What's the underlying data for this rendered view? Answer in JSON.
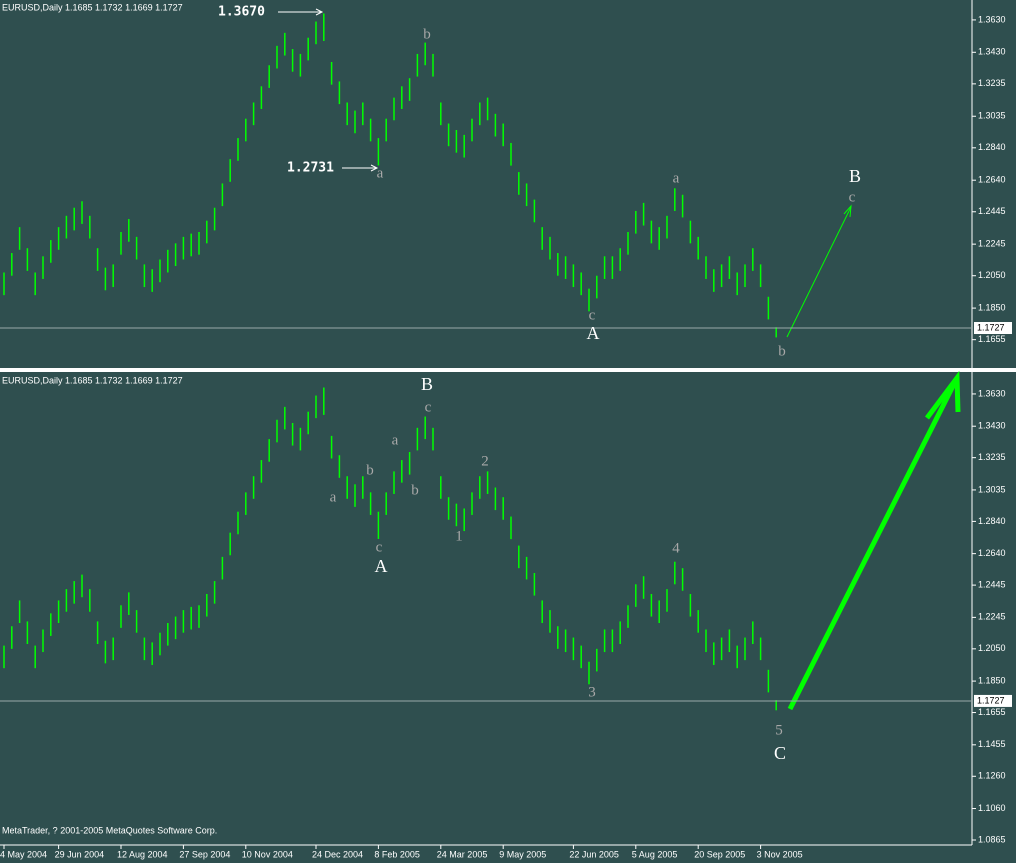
{
  "chart_data": {
    "type": "ohlc",
    "header": "EURUSD,Daily  1.1685 1.1732 1.1669 1.1727",
    "footer": "MetaTrader, ? 2001-2005 MetaQuotes Software Corp.",
    "color": "#00ff00",
    "current_price": 1.1727,
    "xticks": [
      {
        "value": 0,
        "label": "4 May 2004"
      },
      {
        "value": 7,
        "label": "29 Jun 2004"
      },
      {
        "value": 15,
        "label": "12 Aug 2004"
      },
      {
        "value": 23,
        "label": "27 Sep 2004"
      },
      {
        "value": 31,
        "label": "10 Nov 2004"
      },
      {
        "value": 40,
        "label": "24 Dec 2004"
      },
      {
        "value": 48,
        "label": "8 Feb 2005"
      },
      {
        "value": 56,
        "label": "24 Mar 2005"
      },
      {
        "value": 64,
        "label": "9 May 2005"
      },
      {
        "value": 73,
        "label": "22 Jun 2005"
      },
      {
        "value": 81,
        "label": "5 Aug 2005"
      },
      {
        "value": 89,
        "label": "20 Sep 2005"
      },
      {
        "value": 97,
        "label": "3 Nov 2005"
      }
    ],
    "high": [
      1.207,
      1.219,
      1.235,
      1.222,
      1.207,
      1.217,
      1.227,
      1.235,
      1.242,
      1.247,
      1.251,
      1.242,
      1.222,
      1.21,
      1.212,
      1.232,
      1.24,
      1.229,
      1.212,
      1.209,
      1.215,
      1.221,
      1.225,
      1.229,
      1.231,
      1.232,
      1.239,
      1.247,
      1.262,
      1.277,
      1.29,
      1.302,
      1.312,
      1.322,
      1.335,
      1.347,
      1.355,
      1.345,
      1.342,
      1.352,
      1.362,
      1.367,
      1.337,
      1.325,
      1.312,
      1.307,
      1.312,
      1.302,
      1.29,
      1.302,
      1.315,
      1.322,
      1.327,
      1.342,
      1.349,
      1.342,
      1.312,
      1.299,
      1.295,
      1.292,
      1.302,
      1.312,
      1.315,
      1.305,
      1.299,
      1.287,
      1.269,
      1.262,
      1.252,
      1.235,
      1.229,
      1.219,
      1.217,
      1.212,
      1.207,
      1.197,
      1.205,
      1.217,
      1.217,
      1.222,
      1.232,
      1.245,
      1.25,
      1.239,
      1.235,
      1.242,
      1.259,
      1.255,
      1.239,
      1.229,
      1.217,
      1.209,
      1.212,
      1.217,
      1.207,
      1.212,
      1.222,
      1.212,
      1.192,
      1.1732
    ],
    "low": [
      1.193,
      1.205,
      1.221,
      1.208,
      1.193,
      1.203,
      1.213,
      1.221,
      1.228,
      1.233,
      1.237,
      1.228,
      1.208,
      1.196,
      1.198,
      1.218,
      1.226,
      1.215,
      1.198,
      1.195,
      1.201,
      1.207,
      1.211,
      1.215,
      1.217,
      1.218,
      1.225,
      1.233,
      1.248,
      1.263,
      1.276,
      1.288,
      1.298,
      1.308,
      1.321,
      1.333,
      1.341,
      1.331,
      1.328,
      1.338,
      1.348,
      1.35,
      1.323,
      1.311,
      1.298,
      1.293,
      1.298,
      1.288,
      1.2731,
      1.288,
      1.301,
      1.308,
      1.313,
      1.328,
      1.335,
      1.328,
      1.298,
      1.285,
      1.281,
      1.278,
      1.288,
      1.298,
      1.301,
      1.291,
      1.285,
      1.273,
      1.255,
      1.248,
      1.238,
      1.221,
      1.215,
      1.205,
      1.203,
      1.198,
      1.193,
      1.183,
      1.191,
      1.203,
      1.203,
      1.208,
      1.218,
      1.231,
      1.236,
      1.225,
      1.221,
      1.228,
      1.245,
      1.241,
      1.225,
      1.215,
      1.203,
      1.195,
      1.198,
      1.203,
      1.193,
      1.198,
      1.208,
      1.198,
      1.178,
      1.1669
    ],
    "panes": [
      {
        "ylim": [
          1.148,
          1.3753
        ],
        "yticks": [
          {
            "value": 1.363,
            "label": "1.3630"
          },
          {
            "value": 1.343,
            "label": "1.3430"
          },
          1.3235,
          1.3035,
          {
            "value": 1.284,
            "label": "1.2840"
          },
          {
            "value": 1.264,
            "label": "1.2640"
          },
          1.2445,
          1.2245,
          {
            "value": 1.205,
            "label": "1.2050"
          },
          {
            "value": 1.185,
            "label": "1.1850"
          },
          1.1655
        ],
        "labels": [
          "1.3670",
          "b",
          "1.2731",
          "a",
          "a",
          "B",
          "c",
          "c",
          "A",
          "b"
        ]
      },
      {
        "ylim": [
          1.0834,
          1.3766
        ],
        "yticks": [
          {
            "value": 1.363,
            "label": "1.3630"
          },
          {
            "value": 1.343,
            "label": "1.3430"
          },
          1.3235,
          1.3035,
          {
            "value": 1.284,
            "label": "1.2840"
          },
          {
            "value": 1.264,
            "label": "1.2640"
          },
          1.2445,
          1.2245,
          {
            "value": 1.205,
            "label": "1.2050"
          },
          {
            "value": 1.185,
            "label": "1.1850"
          },
          1.1655,
          1.1455,
          {
            "value": 1.126,
            "label": "1.1260"
          },
          {
            "value": 1.106,
            "label": "1.1060"
          },
          1.0865
        ],
        "labels": [
          "B",
          "c",
          "a",
          "b",
          "a",
          "b",
          "c",
          "A",
          "2",
          "1",
          "4",
          "3",
          "5",
          "C"
        ]
      }
    ]
  }
}
